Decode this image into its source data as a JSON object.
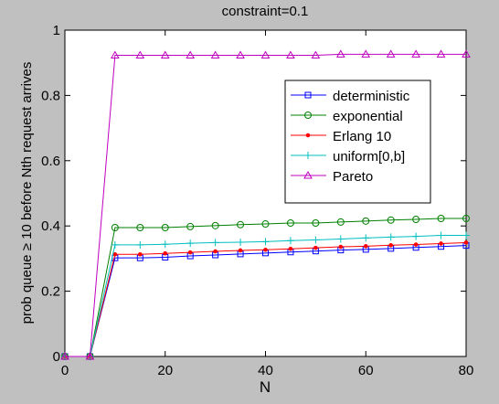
{
  "chart_data": {
    "type": "line",
    "title": "constraint=0.1",
    "xlabel": "N",
    "ylabel": "prob queue ≥ 10 before Nth request arrives",
    "xlim": [
      0,
      80
    ],
    "ylim": [
      0,
      1
    ],
    "xticks": [
      0,
      20,
      40,
      60,
      80
    ],
    "yticks": [
      0,
      0.2,
      0.4,
      0.6,
      0.8,
      1
    ],
    "xtick_labels": [
      "0",
      "20",
      "40",
      "60",
      "80"
    ],
    "ytick_labels": [
      "0",
      "0.2",
      "0.4",
      "0.6",
      "0.8",
      "1"
    ],
    "grid": false,
    "legend_position": "upper-right",
    "x": [
      0,
      5,
      10,
      15,
      20,
      25,
      30,
      35,
      40,
      45,
      50,
      55,
      60,
      65,
      70,
      75,
      80
    ],
    "series": [
      {
        "name": "deterministic",
        "color": "#0000ff",
        "marker": "square",
        "values": [
          0,
          0,
          0.302,
          0.302,
          0.304,
          0.308,
          0.311,
          0.314,
          0.317,
          0.32,
          0.323,
          0.326,
          0.328,
          0.331,
          0.334,
          0.337,
          0.34
        ]
      },
      {
        "name": "exponential",
        "color": "#008000",
        "marker": "circle",
        "values": [
          0,
          0,
          0.395,
          0.395,
          0.395,
          0.398,
          0.401,
          0.404,
          0.406,
          0.409,
          0.409,
          0.412,
          0.415,
          0.418,
          0.42,
          0.423,
          0.423
        ]
      },
      {
        "name": "Erlang 10",
        "color": "#ff0000",
        "marker": "dot",
        "values": [
          0,
          0,
          0.313,
          0.313,
          0.316,
          0.319,
          0.322,
          0.325,
          0.327,
          0.33,
          0.333,
          0.336,
          0.338,
          0.341,
          0.343,
          0.346,
          0.349
        ]
      },
      {
        "name": "uniform[0,b]",
        "color": "#00bfbf",
        "marker": "plus",
        "values": [
          0,
          0,
          0.342,
          0.342,
          0.344,
          0.347,
          0.349,
          0.35,
          0.352,
          0.355,
          0.357,
          0.36,
          0.363,
          0.366,
          0.368,
          0.371,
          0.371
        ]
      },
      {
        "name": "Pareto",
        "color": "#bf00bf",
        "marker": "triangle",
        "values": [
          0,
          0,
          0.923,
          0.923,
          0.923,
          0.923,
          0.923,
          0.923,
          0.923,
          0.923,
          0.923,
          0.926,
          0.926,
          0.926,
          0.926,
          0.926,
          0.926
        ]
      }
    ]
  }
}
